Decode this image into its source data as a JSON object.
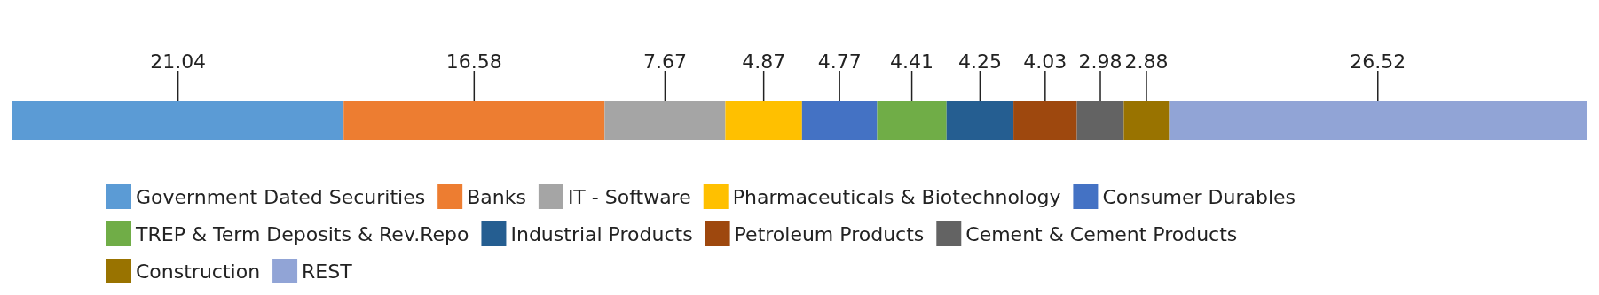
{
  "chart_data": {
    "type": "bar",
    "stacked": true,
    "orientation": "horizontal",
    "categories": [
      null
    ],
    "xlim": [
      0,
      100
    ],
    "grid": false,
    "legend": "bottom",
    "data_labels": true,
    "series": [
      {
        "name": "Government Dated Securities",
        "color": "#5b9bd5",
        "values": [
          21.04
        ]
      },
      {
        "name": "Banks",
        "color": "#ed7d31",
        "values": [
          16.58
        ]
      },
      {
        "name": "IT - Software",
        "color": "#a5a5a5",
        "values": [
          7.67
        ]
      },
      {
        "name": "Pharmaceuticals & Biotechnology",
        "color": "#ffc000",
        "values": [
          4.87
        ]
      },
      {
        "name": "Consumer Durables",
        "color": "#4472c4",
        "values": [
          4.77
        ]
      },
      {
        "name": "TREP & Term Deposits & Rev.Repo",
        "color": "#70ad47",
        "values": [
          4.41
        ]
      },
      {
        "name": "Industrial Products",
        "color": "#255e91",
        "values": [
          4.25
        ]
      },
      {
        "name": "Petroleum Products",
        "color": "#9e480e",
        "values": [
          4.03
        ]
      },
      {
        "name": "Cement & Cement Products",
        "color": "#636363",
        "values": [
          2.98
        ]
      },
      {
        "name": "Construction",
        "color": "#997300",
        "values": [
          2.88
        ]
      },
      {
        "name": "REST",
        "color": "#91a4d6",
        "values": [
          26.52
        ]
      }
    ]
  }
}
